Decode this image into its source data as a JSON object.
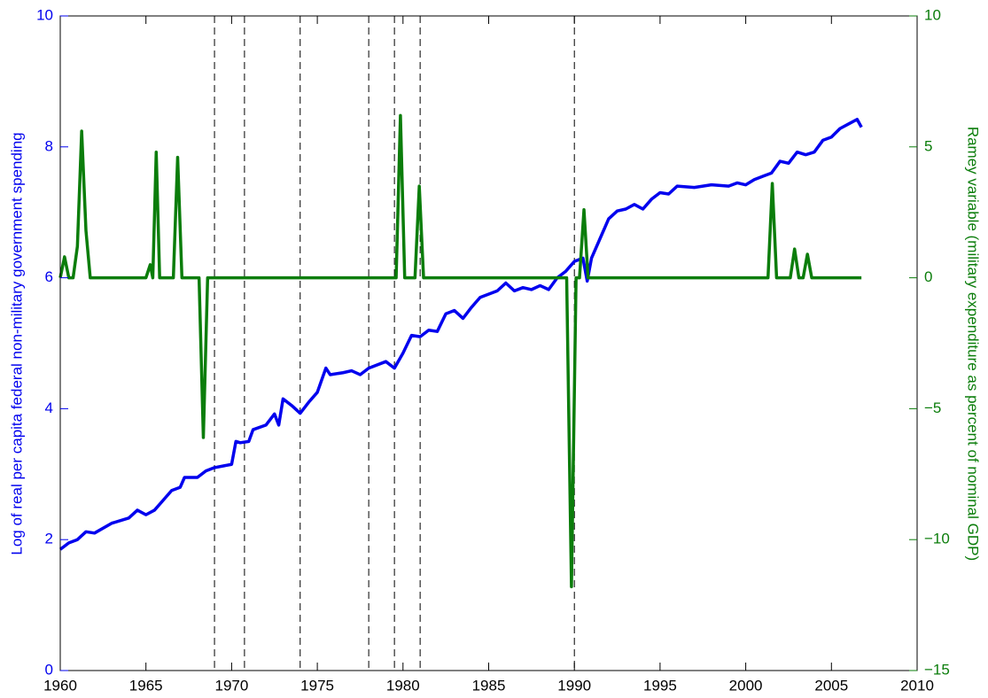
{
  "chart_data": {
    "type": "line",
    "ylabel": "Log of real per capita federal non-military government spending",
    "y2label": "Ramey variable (military expenditure as percent of nominal GDP)",
    "xlim": [
      1960,
      2010
    ],
    "xticks": [
      1960,
      1965,
      1970,
      1975,
      1980,
      1985,
      1990,
      1995,
      2000,
      2005,
      2010
    ],
    "ylim": [
      0,
      10
    ],
    "yticks": [
      0,
      2,
      4,
      6,
      8,
      10
    ],
    "y2lim": [
      -15,
      10
    ],
    "y2ticks": [
      {
        "value": -15,
        "label": "−15"
      },
      {
        "value": -10,
        "label": "−10"
      },
      {
        "value": -5,
        "label": "−5"
      },
      0,
      5,
      10
    ],
    "ycolor": "#0000ee",
    "y2color": "#0b7d0b",
    "vlines": [
      1969,
      1970.75,
      1974,
      1978,
      1979.5,
      1981,
      1990
    ],
    "series": [
      {
        "color": "#0000ee",
        "axis": "y",
        "x": [
          1960,
          1960.5,
          1961,
          1961.5,
          1962,
          1963,
          1964,
          1964.5,
          1965,
          1965.5,
          1966,
          1966.5,
          1967,
          1967.25,
          1968,
          1968.5,
          1969,
          1970,
          1970.25,
          1970.5,
          1971,
          1971.25,
          1972,
          1972.5,
          1972.75,
          1973,
          1973.5,
          1974,
          1974.5,
          1975,
          1975.5,
          1975.75,
          1976.5,
          1977,
          1977.5,
          1978,
          1979,
          1979.5,
          1980,
          1980.5,
          1981,
          1981.5,
          1982,
          1982.5,
          1983,
          1983.5,
          1984,
          1984.5,
          1985.5,
          1986,
          1986.5,
          1987,
          1987.5,
          1988,
          1988.5,
          1989,
          1989.5,
          1990,
          1990.5,
          1990.75,
          1991,
          1991.5,
          1992,
          1992.5,
          1993,
          1993.5,
          1994,
          1994.5,
          1995,
          1995.5,
          1996,
          1997,
          1998,
          1999,
          1999.5,
          2000,
          2000.5,
          2001,
          2001.5,
          2002,
          2002.5,
          2003,
          2003.5,
          2004,
          2004.5,
          2005,
          2005.5,
          2006,
          2006.5,
          2006.75
        ],
        "values": [
          1.85,
          1.95,
          2.0,
          2.12,
          2.1,
          2.25,
          2.33,
          2.45,
          2.38,
          2.45,
          2.6,
          2.75,
          2.8,
          2.95,
          2.95,
          3.05,
          3.1,
          3.15,
          3.5,
          3.48,
          3.5,
          3.68,
          3.75,
          3.92,
          3.75,
          4.15,
          4.05,
          3.93,
          4.1,
          4.25,
          4.62,
          4.52,
          4.55,
          4.58,
          4.52,
          4.62,
          4.72,
          4.62,
          4.85,
          5.12,
          5.1,
          5.2,
          5.18,
          5.45,
          5.5,
          5.38,
          5.55,
          5.7,
          5.8,
          5.92,
          5.8,
          5.85,
          5.82,
          5.88,
          5.82,
          6.0,
          6.1,
          6.25,
          6.3,
          5.95,
          6.3,
          6.6,
          6.9,
          7.02,
          7.05,
          7.12,
          7.05,
          7.2,
          7.3,
          7.28,
          7.4,
          7.38,
          7.42,
          7.4,
          7.45,
          7.42,
          7.5,
          7.55,
          7.6,
          7.78,
          7.75,
          7.92,
          7.88,
          7.92,
          8.1,
          8.15,
          8.28,
          8.35,
          8.42,
          8.3
        ]
      },
      {
        "color": "#0b7d0b",
        "axis": "y2",
        "x": [
          1960,
          1960.25,
          1960.5,
          1960.75,
          1961,
          1961.25,
          1961.5,
          1961.75,
          1965,
          1965.25,
          1965.4,
          1965.6,
          1965.8,
          1966.6,
          1966.85,
          1967.1,
          1968.1,
          1968.35,
          1968.6,
          1979.6,
          1979.85,
          1980.1,
          1980.7,
          1980.95,
          1981.2,
          1989.55,
          1989.83,
          1990.1,
          1990.3,
          1990.56,
          1990.8,
          2001.3,
          2001.55,
          2001.8,
          2002.6,
          2002.85,
          2003.1,
          2003.35,
          2003.6,
          2003.85,
          2006.75
        ],
        "values": [
          0,
          0.8,
          0,
          0,
          1.2,
          5.6,
          1.8,
          0,
          0,
          0.5,
          0,
          4.8,
          0,
          0,
          4.6,
          0,
          0,
          -6.1,
          0,
          0,
          6.2,
          0,
          0,
          3.5,
          0,
          0,
          -11.8,
          0,
          0,
          2.6,
          0,
          0,
          3.6,
          0,
          0,
          1.1,
          0,
          0,
          0.9,
          0,
          0
        ]
      }
    ]
  }
}
